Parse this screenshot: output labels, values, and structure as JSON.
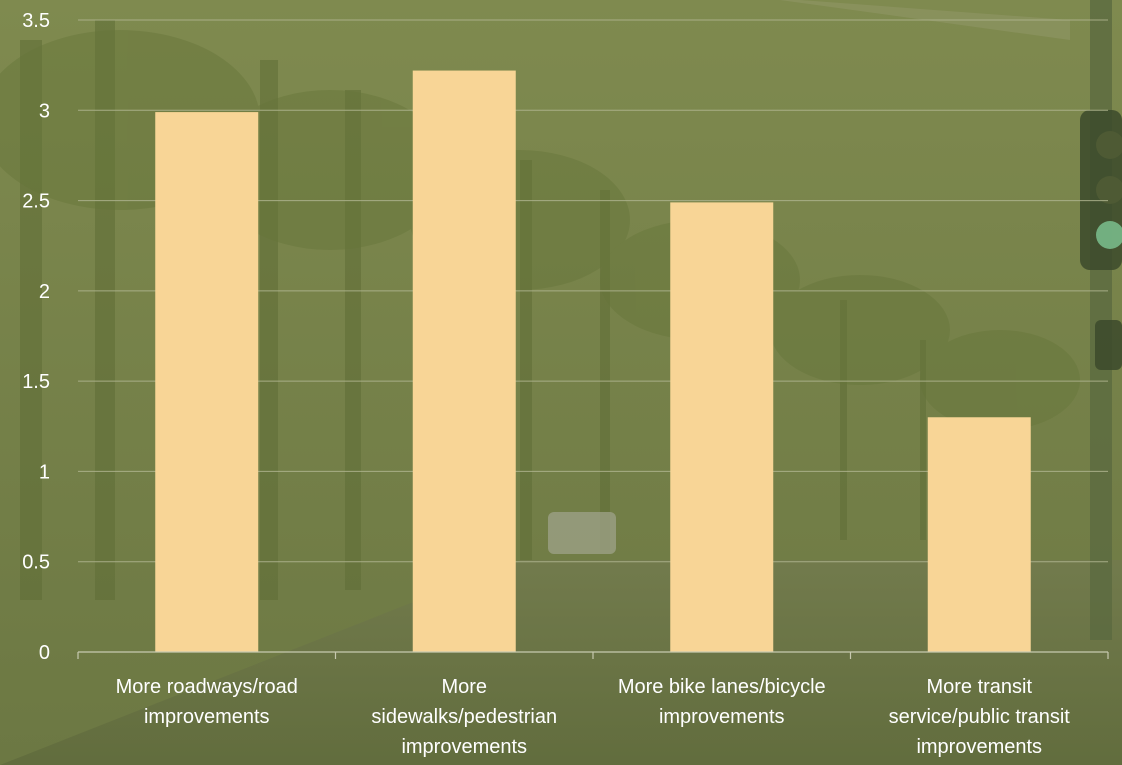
{
  "chart_data": {
    "type": "bar",
    "categories": [
      [
        "More roadways/road",
        "improvements"
      ],
      [
        "More",
        "sidewalks/pedestrian",
        "improvements"
      ],
      [
        "More bike lanes/bicycle",
        "improvements"
      ],
      [
        "More transit",
        "service/public transit",
        "improvements"
      ]
    ],
    "values": [
      2.99,
      3.22,
      2.49,
      1.3
    ],
    "ylim": [
      0,
      3.5
    ],
    "yticks": [
      "0",
      "0.5",
      "1",
      "1.5",
      "2",
      "2.5",
      "3",
      "3.5"
    ],
    "title": "",
    "xlabel": "",
    "ylabel": "",
    "grid": true,
    "legend": "none"
  },
  "colors": {
    "bar": "#f8d596",
    "grid": "#aeb38e",
    "axis": "#c7c9b0",
    "text": "#ffffff",
    "background": "#6e7a45"
  }
}
